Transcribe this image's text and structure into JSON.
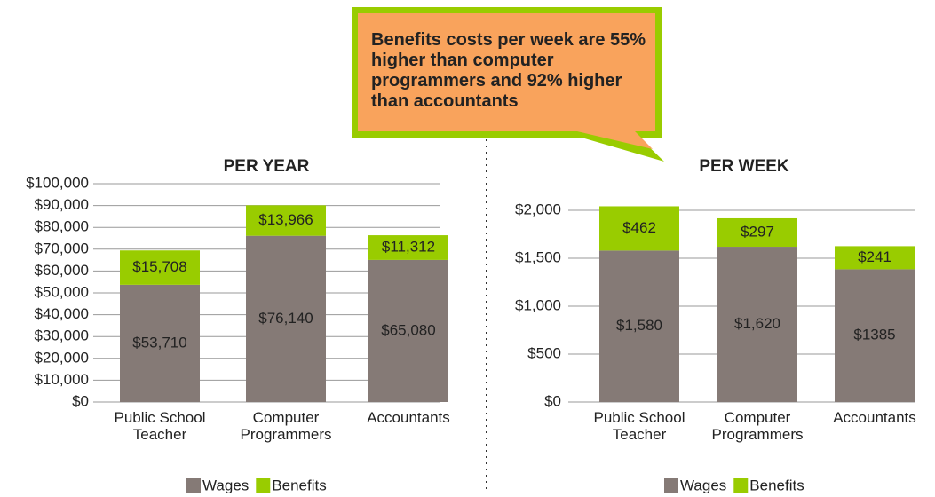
{
  "chart_data": [
    {
      "type": "stacked_bar",
      "title": "PER YEAR",
      "categories": [
        "Public School Teacher",
        "Computer Programmers",
        "Accountants"
      ],
      "series": [
        {
          "name": "Wages",
          "color": "#857a76",
          "values": [
            53710,
            76140,
            65080
          ],
          "value_labels": [
            "$53,710",
            "$76,140",
            "$65,080"
          ]
        },
        {
          "name": "Benefits",
          "color": "#99cc00",
          "values": [
            15708,
            13966,
            11312
          ],
          "value_labels": [
            "$15,708",
            "$13,966",
            "$11,312"
          ]
        }
      ],
      "ylim": [
        0,
        100000
      ],
      "yticks": [
        {
          "value": 0,
          "label": "$0"
        },
        {
          "value": 10000,
          "label": "$10,000"
        },
        {
          "value": 20000,
          "label": "$20,000"
        },
        {
          "value": 30000,
          "label": "$30,000"
        },
        {
          "value": 40000,
          "label": "$40,000"
        },
        {
          "value": 50000,
          "label": "$50,000"
        },
        {
          "value": 60000,
          "label": "$60,000"
        },
        {
          "value": 70000,
          "label": "$70,000"
        },
        {
          "value": 80000,
          "label": "$80,000"
        },
        {
          "value": 90000,
          "label": "$90,000"
        },
        {
          "value": 100000,
          "label": "$100,000"
        }
      ],
      "grid": true,
      "legend": "bottom"
    },
    {
      "type": "stacked_bar",
      "title": "PER WEEK",
      "annotation": "Benefits costs per week are 55% higher than computer programmers and 92% higher than accountants",
      "categories": [
        "Public School Teacher",
        "Computer Programmers",
        "Accountants"
      ],
      "series": [
        {
          "name": "Wages",
          "color": "#857a76",
          "values": [
            1580,
            1620,
            1385
          ],
          "value_labels": [
            "$1,580",
            "$1,620",
            "$1385"
          ]
        },
        {
          "name": "Benefits",
          "color": "#99cc00",
          "values": [
            462,
            297,
            241
          ],
          "value_labels": [
            "$462",
            "$297",
            "$241"
          ]
        }
      ],
      "ylim": [
        0,
        2000
      ],
      "yticks": [
        {
          "value": 0,
          "label": "$0"
        },
        {
          "value": 500,
          "label": "$500"
        },
        {
          "value": 1000,
          "label": "$1,000"
        },
        {
          "value": 1500,
          "label": "$1,500"
        },
        {
          "value": 2000,
          "label": "$2,000"
        }
      ],
      "grid": true,
      "legend": "bottom"
    }
  ]
}
